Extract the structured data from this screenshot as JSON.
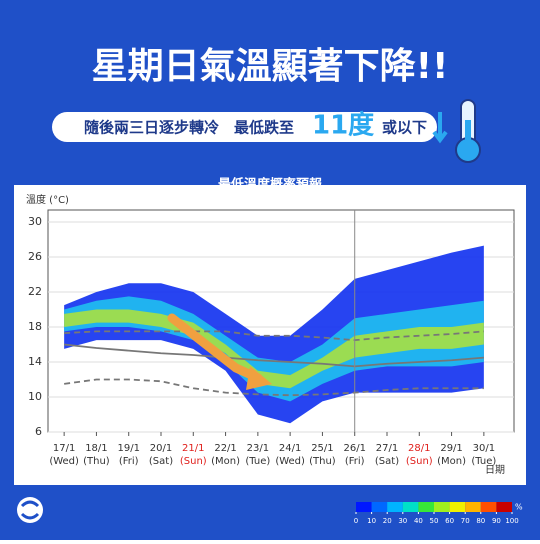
{
  "header": {
    "title": "星期日氣溫顯著下降!!",
    "subtitle": "隨後兩三日逐步轉冷　最低跌至",
    "highlight": "11度",
    "subtitle_end": "或以下"
  },
  "chart_data": {
    "type": "band",
    "title": "最低溫度概率預報",
    "ylabel": "溫度 (°C)",
    "xlabel": "日期",
    "categories": [
      "17/1",
      "18/1",
      "19/1",
      "20/1",
      "21/1",
      "22/1",
      "23/1",
      "24/1",
      "25/1",
      "26/1",
      "27/1",
      "28/1",
      "29/1",
      "30/1"
    ],
    "weekdays": [
      "(Wed)",
      "(Thu)",
      "(Fri)",
      "(Sat)",
      "(Sun)",
      "(Mon)",
      "(Tue)",
      "(Wed)",
      "(Thu)",
      "(Fri)",
      "(Sat)",
      "(Sun)",
      "(Mon)",
      "(Tue)"
    ],
    "label_colors": [
      "#333",
      "#333",
      "#333",
      "#333",
      "#e0201c",
      "#333",
      "#333",
      "#333",
      "#333",
      "#333",
      "#333",
      "#e0201c",
      "#333",
      "#333"
    ],
    "ylim": [
      6,
      30
    ],
    "yticks": [
      6,
      10,
      14,
      18,
      22,
      26,
      30
    ],
    "bands": [
      {
        "color": "#1030f0",
        "low": [
          15.5,
          16.5,
          16.5,
          16.5,
          15.5,
          13,
          8,
          7,
          9.5,
          10.5,
          10.5,
          10.5,
          10.5,
          11
        ],
        "high": [
          20.5,
          22,
          23,
          23,
          22,
          19.5,
          17,
          17,
          20,
          23.5,
          24.5,
          25.5,
          26.5,
          27.3
        ]
      },
      {
        "color": "#20c0f0",
        "low": [
          17.5,
          18,
          18,
          17.5,
          16.5,
          14,
          10.5,
          9.5,
          11.5,
          13,
          13.5,
          13.5,
          13.5,
          14
        ],
        "high": [
          20,
          21,
          21.5,
          21,
          19.5,
          17,
          14.5,
          14,
          16,
          19,
          19.5,
          20,
          20.5,
          21
        ]
      },
      {
        "color": "#a8e040",
        "low": [
          18,
          18.5,
          18.5,
          18,
          17,
          15,
          11.5,
          11,
          13,
          14.5,
          15,
          15.5,
          15.5,
          16
        ],
        "high": [
          19.5,
          20,
          20,
          19.5,
          18.5,
          16,
          13,
          12.5,
          14.5,
          17,
          17.5,
          18,
          18,
          18.5
        ]
      }
    ],
    "lines": [
      {
        "color": "#777",
        "dashed": true,
        "values": [
          17.3,
          17.5,
          17.5,
          17.5,
          17.5,
          17.5,
          17,
          17,
          16.8,
          16.5,
          16.8,
          17,
          17.2,
          17.5
        ]
      },
      {
        "color": "#777",
        "dashed": false,
        "values": [
          16,
          15.6,
          15.3,
          15,
          14.8,
          14.5,
          14.2,
          14,
          13.8,
          13.5,
          13.8,
          14,
          14.2,
          14.5
        ]
      },
      {
        "color": "#777",
        "dashed": true,
        "values": [
          11.5,
          12,
          12,
          11.8,
          11,
          10.5,
          10.3,
          10.2,
          10.3,
          10.5,
          10.8,
          11,
          11,
          11
        ]
      }
    ],
    "colorbar": {
      "colors": [
        "#0018ff",
        "#0068ff",
        "#00b4ff",
        "#00e0c8",
        "#38e838",
        "#a0f020",
        "#f0f000",
        "#ffb400",
        "#ff5000",
        "#c80000"
      ],
      "ticks": [
        0,
        10,
        20,
        30,
        40,
        50,
        60,
        70,
        80,
        90,
        100
      ],
      "unit": "%"
    }
  }
}
